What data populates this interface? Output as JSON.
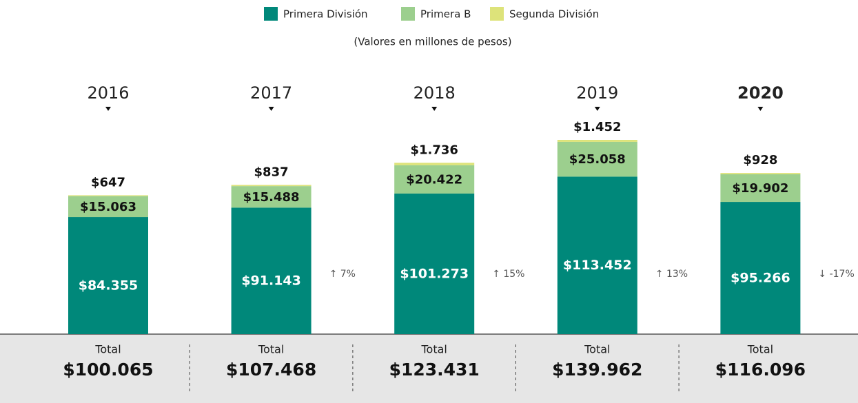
{
  "chart_data": {
    "type": "stacked_bar",
    "subtitle": "(Valores en millones de pesos)",
    "categories": [
      "2016",
      "2017",
      "2018",
      "2019",
      "2020"
    ],
    "highlight": "2020",
    "series": [
      {
        "name": "Primera División",
        "color": "#00887a",
        "values": [
          84355,
          91143,
          101273,
          113452,
          95266
        ],
        "value_labels": [
          "$84.355",
          "$91.143",
          "$101.273",
          "$113.452",
          "$95.266"
        ]
      },
      {
        "name": "Primera B",
        "color": "#9ccf8e",
        "values": [
          15063,
          15488,
          20422,
          25058,
          19902
        ],
        "value_labels": [
          "$15.063",
          "$15.488",
          "$20.422",
          "$25.058",
          "$19.902"
        ]
      },
      {
        "name": "Segunda División",
        "color": "#dde37a",
        "values": [
          647,
          837,
          1736,
          1452,
          928
        ],
        "value_labels": [
          "$647",
          "$837",
          "$1.736",
          "$1.452",
          "$928"
        ]
      }
    ],
    "totals": {
      "label": "Total",
      "values": [
        100065,
        107468,
        123431,
        139962,
        116096
      ],
      "value_labels": [
        "$100.065",
        "$107.468",
        "$123.431",
        "$139.962",
        "$116.096"
      ]
    },
    "changes": {
      "values": [
        7,
        15,
        13,
        -17
      ],
      "value_labels": [
        "↑ 7%",
        "↑ 15%",
        "↑ 13%",
        "↓ -17%"
      ]
    }
  }
}
